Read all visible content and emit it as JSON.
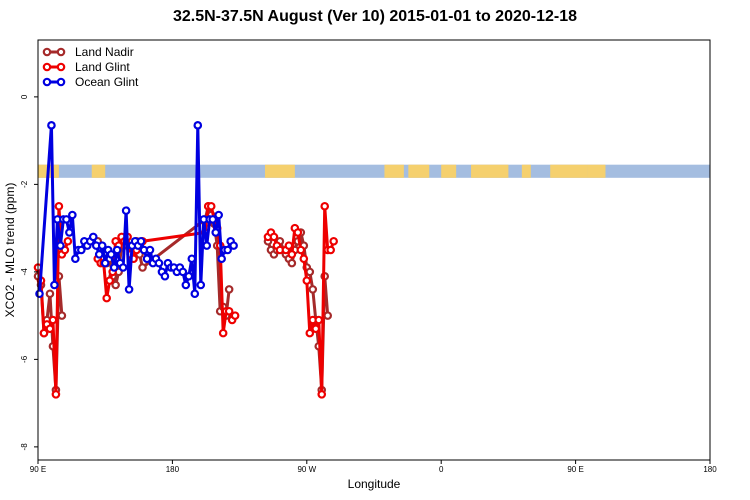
{
  "chart_data": {
    "type": "line",
    "title": "32.5N-37.5N August (Ver 10)   2015-01-01 to 2020-12-18",
    "xlabel": "Longitude",
    "ylabel": "XCO2 - MLO trend (ppm)",
    "x_ticks": [
      {
        "value": 90,
        "label": "90 E"
      },
      {
        "value": 180,
        "label": "180"
      },
      {
        "value": 270,
        "label": "90 W"
      },
      {
        "value": 360,
        "label": "0"
      },
      {
        "value": 450,
        "label": "90 E"
      },
      {
        "value": 540,
        "label": "180"
      }
    ],
    "y_ticks": [
      0,
      -2,
      -4,
      -6,
      -8
    ],
    "xlim": [
      90,
      540
    ],
    "ylim": [
      -8.3,
      1.3
    ],
    "grid": false,
    "legend_position": "top-left",
    "land_band": {
      "y_range": [
        -1.55,
        -1.85
      ],
      "ocean_color": "#a4bde0",
      "land_color": "#f5d06e"
    },
    "series": [
      {
        "name": "Land Nadir",
        "color": "#a52a2a",
        "x": [
          90,
          92,
          94,
          96,
          98,
          100,
          102,
          104,
          106,
          108,
          110,
          112,
          114,
          116,
          118,
          130,
          132,
          134,
          136,
          138,
          140,
          142,
          144,
          146,
          148,
          150,
          152,
          154,
          156,
          158,
          160,
          202,
          204,
          206,
          208,
          210,
          212,
          214,
          216,
          218,
          220,
          222,
          224,
          226,
          228,
          230,
          232,
          244,
          246,
          248,
          250,
          252,
          256,
          258,
          260,
          262,
          264,
          266,
          268,
          270,
          272,
          274,
          276,
          278,
          280,
          282,
          284,
          286,
          288,
          290,
          292,
          294,
          296,
          298,
          300,
          302,
          304,
          306,
          308,
          310
        ],
        "y": [
          -4.1,
          -4.3,
          -5.4,
          -5.1,
          -4.5,
          -5.7,
          -6.7,
          -4.1,
          -5.0,
          null,
          null,
          null,
          null,
          null,
          null,
          -3.3,
          -3.5,
          -3.7,
          -3.8,
          -3.7,
          -4.1,
          -4.3,
          -4.0,
          -3.4,
          -3.3,
          -3.4,
          -3.5,
          -3.5,
          -3.3,
          -3.6,
          -3.9,
          -2.8,
          -2.5,
          -2.7,
          -2.9,
          -3.4,
          -4.9,
          -4.8,
          -5.0,
          -4.4,
          null,
          null,
          null,
          null,
          null,
          null,
          null,
          -3.3,
          -3.5,
          -3.6,
          -3.5,
          -3.3,
          -3.6,
          -3.7,
          -3.8,
          -3.5,
          -3.3,
          -3.1,
          -3.4,
          -3.9,
          -4.0,
          -4.4,
          -5.1,
          -5.7,
          -6.7,
          -4.1,
          -5.0,
          null,
          null,
          null,
          null,
          null,
          null,
          null,
          null,
          null,
          null,
          null,
          null,
          null
        ]
      },
      {
        "name": "Land Glint",
        "color": "#ee0000",
        "x": [
          90,
          92,
          94,
          96,
          98,
          100,
          102,
          104,
          106,
          108,
          110,
          112,
          114,
          116,
          118,
          130,
          132,
          134,
          136,
          138,
          140,
          142,
          144,
          146,
          148,
          150,
          152,
          154,
          156,
          158,
          160,
          202,
          204,
          206,
          208,
          210,
          212,
          214,
          216,
          218,
          220,
          222,
          224,
          226,
          228,
          230,
          232,
          244,
          246,
          248,
          250,
          252,
          256,
          258,
          260,
          262,
          264,
          266,
          268,
          270,
          272,
          274,
          276,
          278,
          280,
          282,
          284,
          286,
          288,
          290,
          292,
          294,
          296,
          298,
          300,
          302,
          304,
          306,
          308,
          310
        ],
        "y": [
          -3.9,
          -4.2,
          -5.4,
          -5.2,
          -5.3,
          -5.1,
          -6.8,
          -2.5,
          -3.6,
          -3.5,
          -3.3,
          null,
          null,
          null,
          null,
          -3.7,
          -3.8,
          -3.8,
          -4.6,
          -4.2,
          -4.0,
          -3.3,
          -3.4,
          -3.2,
          -3.3,
          -3.2,
          -3.6,
          -3.7,
          -3.5,
          -3.4,
          -3.3,
          -3.1,
          -2.5,
          -2.5,
          -2.8,
          -3.0,
          -3.4,
          -5.4,
          -4.9,
          -4.9,
          -5.1,
          -5.0,
          null,
          null,
          null,
          null,
          null,
          -3.2,
          -3.1,
          -3.2,
          -3.4,
          -3.5,
          -3.5,
          -3.4,
          -3.6,
          -3.0,
          -3.1,
          -3.5,
          -3.7,
          -4.2,
          -5.4,
          -5.1,
          -5.3,
          -5.1,
          -6.8,
          -2.5,
          -3.5,
          -3.5,
          -3.3,
          null,
          null,
          null,
          null,
          null,
          null,
          null,
          null,
          null,
          null,
          null
        ]
      },
      {
        "name": "Ocean Glint",
        "color": "#0000e0",
        "x": [
          91,
          99,
          101,
          103,
          105,
          107,
          109,
          111,
          113,
          115,
          117,
          119,
          121,
          123,
          125,
          127,
          129,
          131,
          133,
          135,
          137,
          139,
          141,
          143,
          145,
          147,
          149,
          151,
          153,
          155,
          157,
          159,
          161,
          163,
          165,
          167,
          169,
          171,
          173,
          175,
          177,
          179,
          181,
          183,
          185,
          187,
          189,
          191,
          193,
          195,
          197,
          199,
          201,
          203,
          205,
          207,
          209,
          211,
          213,
          215,
          217,
          219,
          221,
          223,
          225,
          227,
          229,
          231,
          233,
          235,
          237,
          239,
          241,
          243,
          245,
          247,
          249,
          251,
          253,
          255,
          257,
          259,
          261,
          263,
          265,
          267,
          269
        ],
        "y": [
          -4.5,
          -0.65,
          -4.3,
          -2.8,
          -3.4,
          -2.8,
          -2.8,
          -3.1,
          -2.7,
          -3.7,
          -3.5,
          -3.5,
          -3.3,
          -3.4,
          -3.3,
          -3.2,
          -3.4,
          -3.6,
          -3.4,
          -3.8,
          -3.5,
          -3.6,
          -3.9,
          -3.5,
          -3.8,
          -3.9,
          -2.6,
          -4.4,
          -3.4,
          -3.3,
          -3.4,
          -3.3,
          -3.5,
          -3.7,
          -3.5,
          -3.8,
          -3.7,
          -3.8,
          -4.0,
          -4.1,
          -3.8,
          -3.9,
          -3.9,
          -4.0,
          -3.9,
          -4.0,
          -4.3,
          -4.1,
          -3.7,
          -4.5,
          -0.65,
          -4.3,
          -2.8,
          -3.4,
          -2.8,
          -2.8,
          -3.1,
          -2.7,
          -3.7,
          -3.5,
          -3.5,
          -3.3,
          -3.4,
          null,
          null,
          null,
          null,
          null,
          null,
          null,
          null,
          null,
          null,
          null,
          null,
          null,
          null,
          null,
          null,
          null,
          null,
          null,
          null,
          null,
          null,
          null,
          null
        ]
      }
    ]
  }
}
